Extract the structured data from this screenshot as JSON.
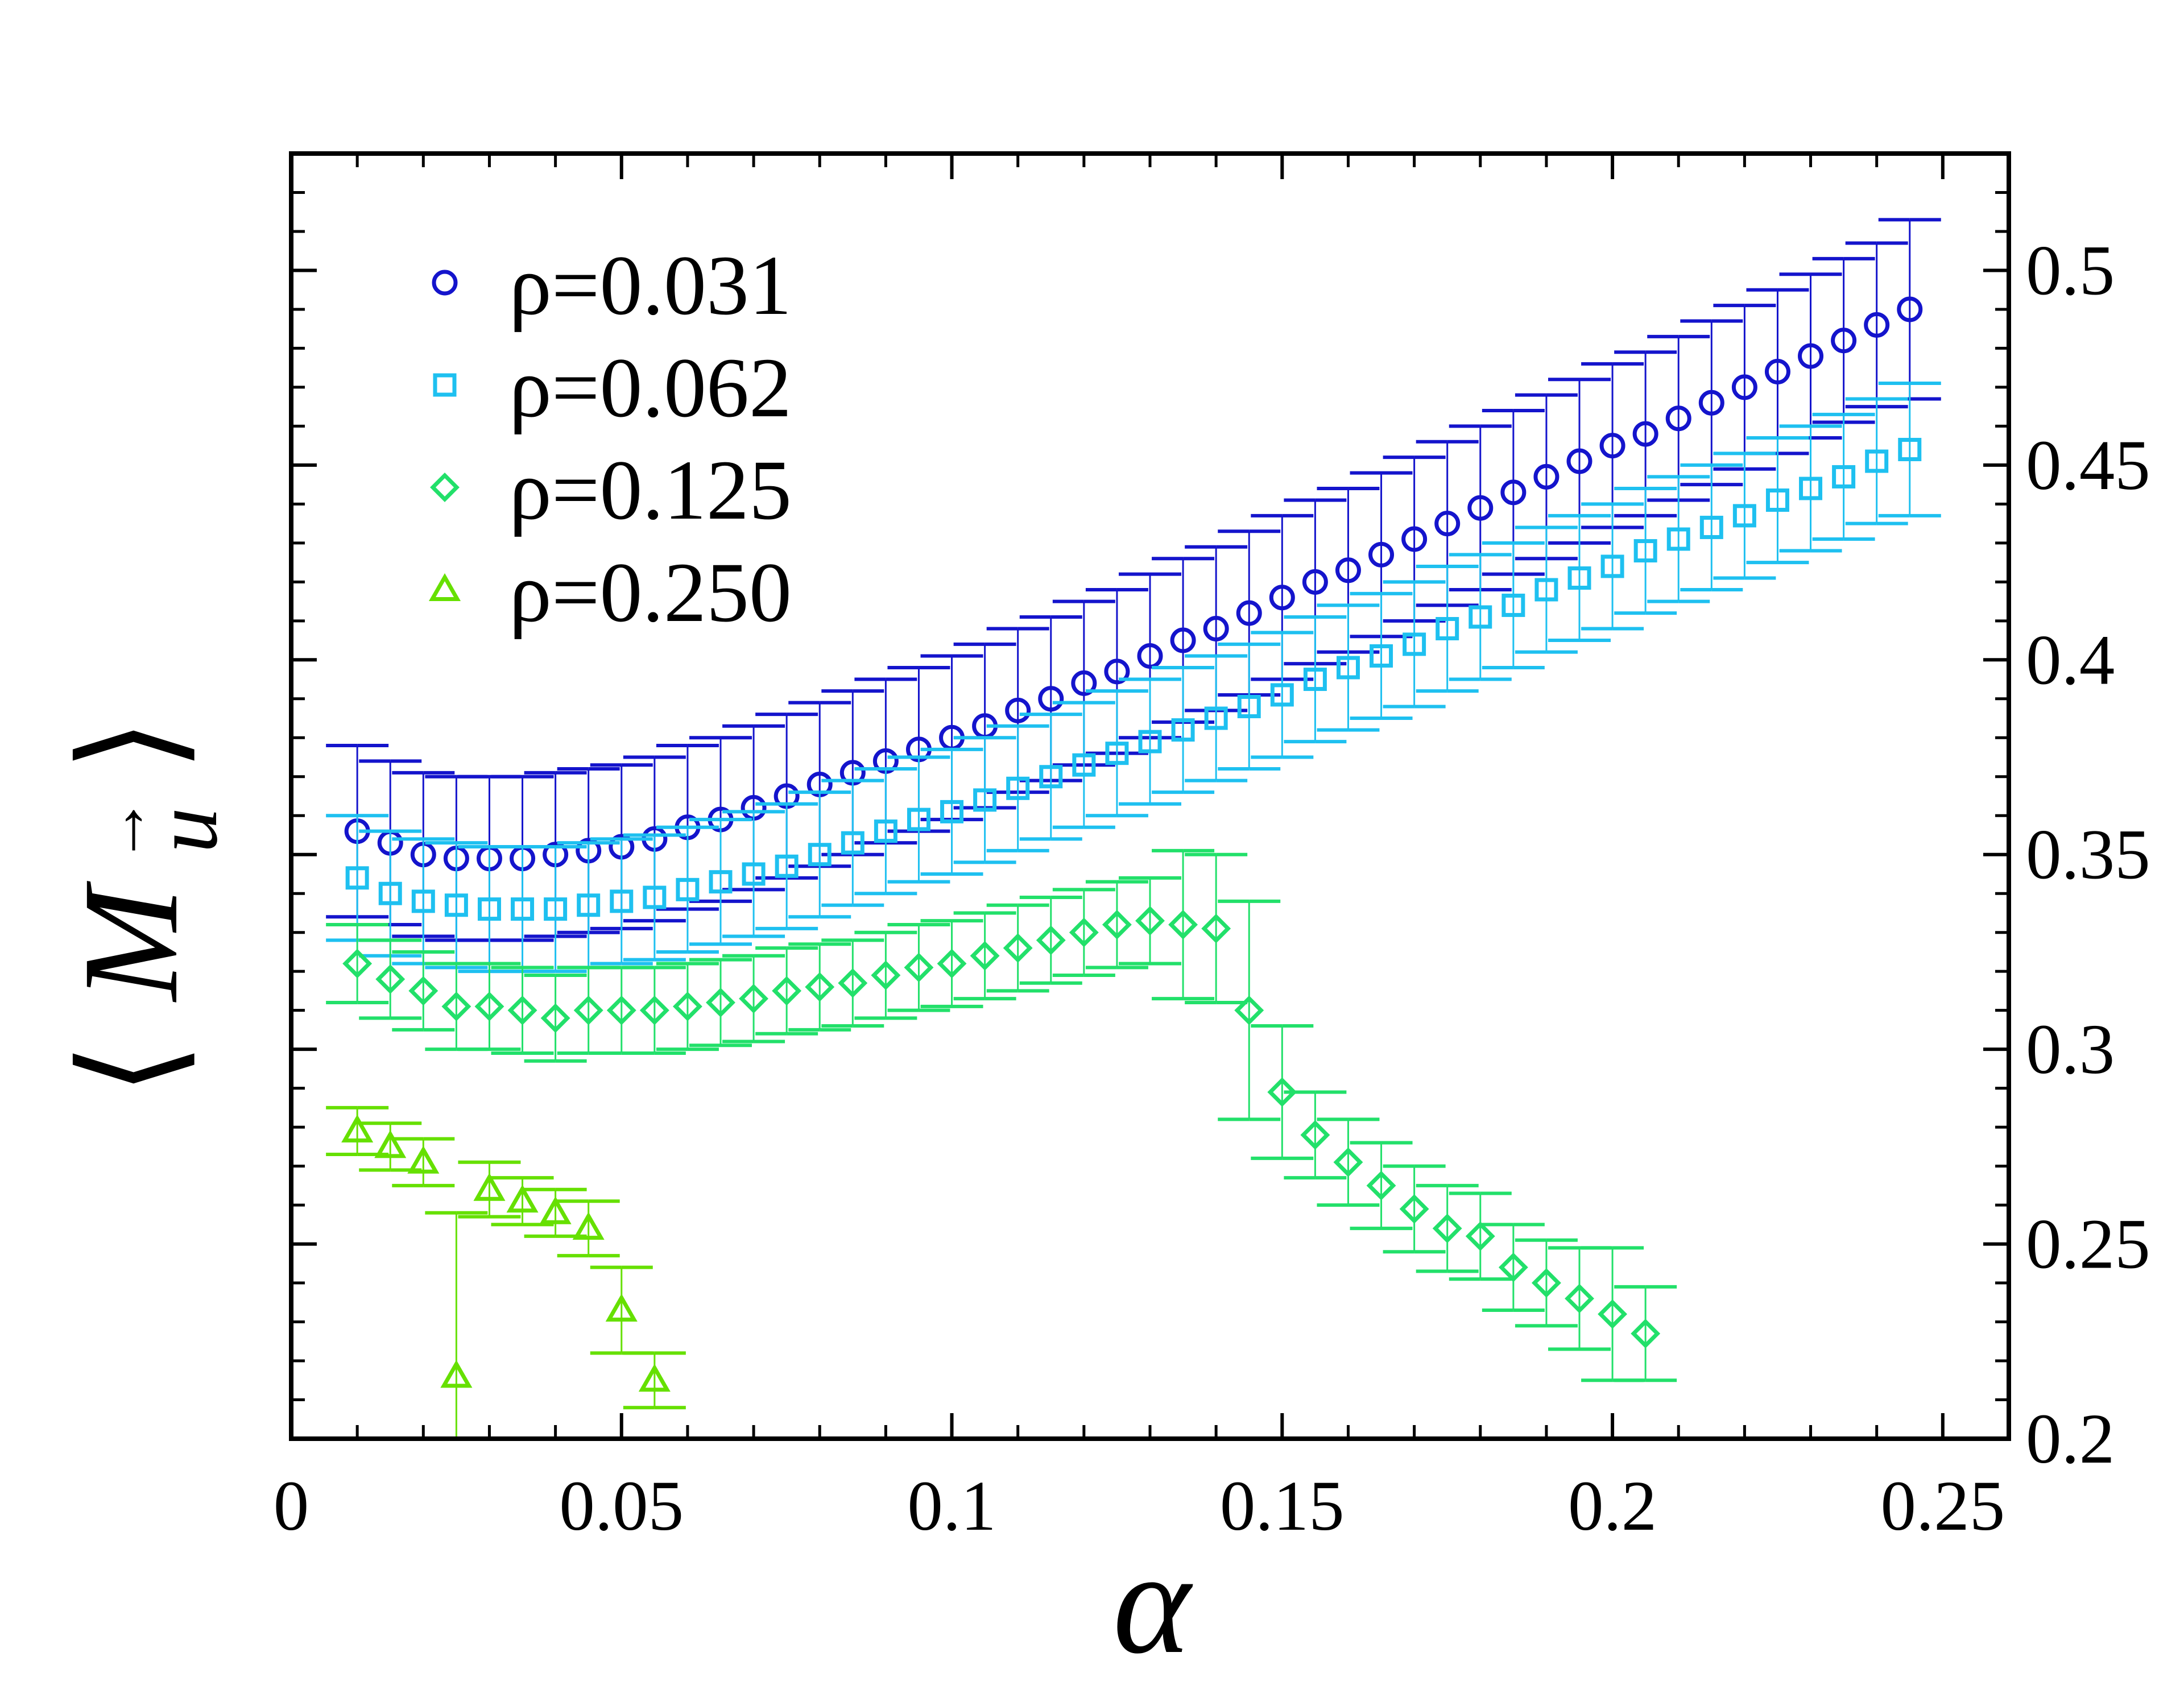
{
  "chart_data": {
    "type": "scatter",
    "title": "",
    "xlabel": "α",
    "ylabel_parts": {
      "open": "⟨",
      "main": "M",
      "sub": "u",
      "arrow": "→",
      "close": "⟩"
    },
    "xlim": [
      0,
      0.26
    ],
    "ylim": [
      0.2,
      0.53
    ],
    "x_ticks": [
      0,
      0.05,
      0.1,
      0.15,
      0.2,
      0.25
    ],
    "x_tick_labels": [
      "0",
      "0.05",
      "0.1",
      "0.15",
      "0.2",
      "0.25"
    ],
    "y_ticks": [
      0.2,
      0.25,
      0.3,
      0.35,
      0.4,
      0.45,
      0.5
    ],
    "y_tick_labels": [
      "0.2",
      "0.25",
      "0.3",
      "0.35",
      "0.4",
      "0.45",
      "0.5"
    ],
    "y_axis_side": "right",
    "grid": false,
    "legend_position": "top-left",
    "series": [
      {
        "name": "ρ=0.031",
        "marker": "circle",
        "color": "#1414cc",
        "x": [
          0.01,
          0.015,
          0.02,
          0.025,
          0.03,
          0.035,
          0.04,
          0.045,
          0.05,
          0.055,
          0.06,
          0.065,
          0.07,
          0.075,
          0.08,
          0.085,
          0.09,
          0.095,
          0.1,
          0.105,
          0.11,
          0.115,
          0.12,
          0.125,
          0.13,
          0.135,
          0.14,
          0.145,
          0.15,
          0.155,
          0.16,
          0.165,
          0.17,
          0.175,
          0.18,
          0.185,
          0.19,
          0.195,
          0.2,
          0.205,
          0.21,
          0.215,
          0.22,
          0.225,
          0.23,
          0.235,
          0.24,
          0.245
        ],
        "y": [
          0.356,
          0.353,
          0.35,
          0.349,
          0.349,
          0.349,
          0.35,
          0.351,
          0.352,
          0.354,
          0.357,
          0.359,
          0.362,
          0.365,
          0.368,
          0.371,
          0.374,
          0.377,
          0.38,
          0.383,
          0.387,
          0.39,
          0.394,
          0.397,
          0.401,
          0.405,
          0.408,
          0.412,
          0.416,
          0.42,
          0.423,
          0.427,
          0.431,
          0.435,
          0.439,
          0.443,
          0.447,
          0.451,
          0.455,
          0.458,
          0.462,
          0.466,
          0.47,
          0.474,
          0.478,
          0.482,
          0.486,
          0.49
        ],
        "err": [
          0.022,
          0.021,
          0.021,
          0.021,
          0.021,
          0.021,
          0.021,
          0.021,
          0.021,
          0.021,
          0.021,
          0.021,
          0.021,
          0.021,
          0.021,
          0.021,
          0.021,
          0.021,
          0.021,
          0.021,
          0.021,
          0.021,
          0.021,
          0.021,
          0.021,
          0.021,
          0.021,
          0.021,
          0.021,
          0.021,
          0.021,
          0.021,
          0.021,
          0.021,
          0.021,
          0.021,
          0.021,
          0.021,
          0.021,
          0.021,
          0.021,
          0.021,
          0.021,
          0.021,
          0.021,
          0.021,
          0.021,
          0.023
        ]
      },
      {
        "name": "ρ=0.062",
        "marker": "square",
        "color": "#1ec0f0",
        "x": [
          0.01,
          0.015,
          0.02,
          0.025,
          0.03,
          0.035,
          0.04,
          0.045,
          0.05,
          0.055,
          0.06,
          0.065,
          0.07,
          0.075,
          0.08,
          0.085,
          0.09,
          0.095,
          0.1,
          0.105,
          0.11,
          0.115,
          0.12,
          0.125,
          0.13,
          0.135,
          0.14,
          0.145,
          0.15,
          0.155,
          0.16,
          0.165,
          0.17,
          0.175,
          0.18,
          0.185,
          0.19,
          0.195,
          0.2,
          0.205,
          0.21,
          0.215,
          0.22,
          0.225,
          0.23,
          0.235,
          0.24,
          0.245
        ],
        "y": [
          0.344,
          0.34,
          0.338,
          0.337,
          0.336,
          0.336,
          0.336,
          0.337,
          0.338,
          0.339,
          0.341,
          0.343,
          0.345,
          0.347,
          0.35,
          0.353,
          0.356,
          0.359,
          0.361,
          0.364,
          0.367,
          0.37,
          0.373,
          0.376,
          0.379,
          0.382,
          0.385,
          0.388,
          0.391,
          0.395,
          0.398,
          0.401,
          0.404,
          0.408,
          0.411,
          0.414,
          0.418,
          0.421,
          0.424,
          0.428,
          0.431,
          0.434,
          0.437,
          0.441,
          0.444,
          0.447,
          0.451,
          0.454
        ],
        "err": [
          0.016,
          0.016,
          0.016,
          0.016,
          0.016,
          0.016,
          0.016,
          0.016,
          0.016,
          0.016,
          0.016,
          0.016,
          0.016,
          0.016,
          0.016,
          0.016,
          0.016,
          0.016,
          0.016,
          0.016,
          0.016,
          0.016,
          0.016,
          0.016,
          0.016,
          0.016,
          0.016,
          0.016,
          0.016,
          0.016,
          0.016,
          0.016,
          0.016,
          0.016,
          0.016,
          0.016,
          0.016,
          0.016,
          0.016,
          0.016,
          0.016,
          0.016,
          0.016,
          0.016,
          0.016,
          0.016,
          0.016,
          0.017
        ]
      },
      {
        "name": "ρ=0.125",
        "marker": "diamond",
        "color": "#22e06a",
        "x": [
          0.01,
          0.015,
          0.02,
          0.025,
          0.03,
          0.035,
          0.04,
          0.045,
          0.05,
          0.055,
          0.06,
          0.065,
          0.07,
          0.075,
          0.08,
          0.085,
          0.09,
          0.095,
          0.1,
          0.105,
          0.11,
          0.115,
          0.12,
          0.125,
          0.13,
          0.135,
          0.14,
          0.145,
          0.15,
          0.155,
          0.16,
          0.165,
          0.17,
          0.175,
          0.18,
          0.185,
          0.19,
          0.195,
          0.2,
          0.205
        ],
        "y": [
          0.322,
          0.318,
          0.315,
          0.311,
          0.311,
          0.31,
          0.308,
          0.31,
          0.31,
          0.31,
          0.311,
          0.312,
          0.313,
          0.315,
          0.316,
          0.317,
          0.319,
          0.321,
          0.322,
          0.324,
          0.326,
          0.328,
          0.33,
          0.332,
          0.333,
          0.332,
          0.331,
          0.31,
          0.289,
          0.278,
          0.271,
          0.265,
          0.259,
          0.254,
          0.252,
          0.244,
          0.24,
          0.236,
          0.232,
          0.227
        ],
        "err": [
          0.01,
          0.01,
          0.01,
          0.011,
          0.011,
          0.011,
          0.011,
          0.011,
          0.011,
          0.011,
          0.011,
          0.011,
          0.011,
          0.011,
          0.011,
          0.011,
          0.011,
          0.011,
          0.011,
          0.011,
          0.011,
          0.011,
          0.011,
          0.011,
          0.011,
          0.019,
          0.019,
          0.028,
          0.017,
          0.011,
          0.011,
          0.011,
          0.011,
          0.011,
          0.011,
          0.011,
          0.011,
          0.013,
          0.017,
          0.012
        ]
      },
      {
        "name": "ρ=0.250",
        "marker": "triangle",
        "color": "#66e000",
        "x": [
          0.01,
          0.015,
          0.02,
          0.025,
          0.03,
          0.035,
          0.04,
          0.045,
          0.05,
          0.055
        ],
        "y": [
          0.279,
          0.275,
          0.271,
          0.216,
          0.264,
          0.261,
          0.258,
          0.254,
          0.233,
          0.215
        ],
        "err": [
          0.006,
          0.006,
          0.006,
          0.042,
          0.007,
          0.006,
          0.006,
          0.007,
          0.011,
          0.007
        ]
      }
    ]
  }
}
